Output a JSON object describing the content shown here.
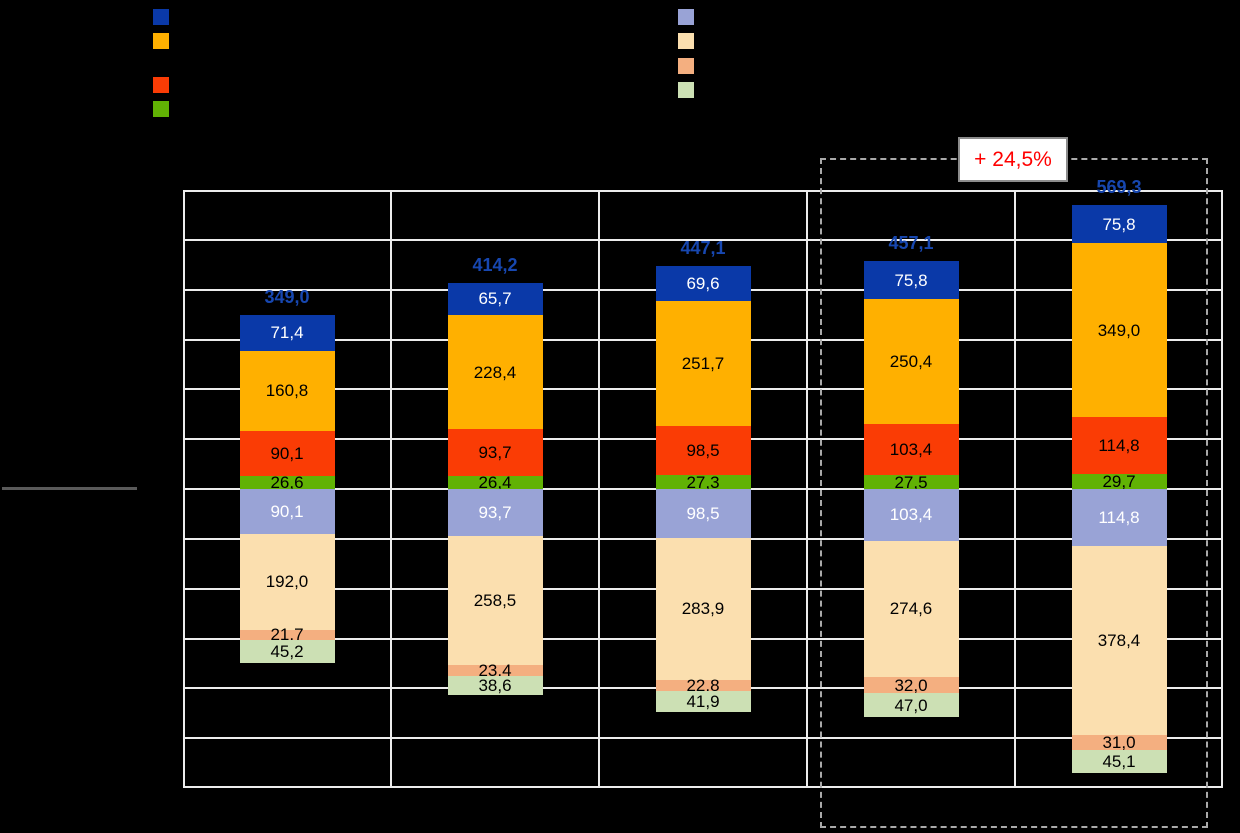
{
  "canvas": {
    "background": "#000000"
  },
  "legend_left": {
    "items": [
      {
        "name": "dark-blue",
        "color": "#0A39A8"
      },
      {
        "name": "orange",
        "color": "#FFB000"
      },
      {
        "name": "red-orange",
        "color": "#FA3C05"
      },
      {
        "name": "green",
        "color": "#61B204"
      }
    ]
  },
  "legend_right": {
    "items": [
      {
        "name": "light-purple",
        "color": "#99A3D6"
      },
      {
        "name": "tan",
        "color": "#FBDFAF"
      },
      {
        "name": "salmon",
        "color": "#F4AF80"
      },
      {
        "name": "light-green",
        "color": "#CCE0B4"
      }
    ]
  },
  "annotation": {
    "text": "+ 24,5%",
    "color": "#FF0000"
  },
  "chart_data": {
    "type": "bar",
    "subtype": "mirrored stacked columns (upper stack above baseline, lower stack below)",
    "columns": 5,
    "categories": [
      "",
      "",
      "",
      "",
      ""
    ],
    "ylim": [
      -600,
      600
    ],
    "grid_step": 100,
    "grid": true,
    "legend_position": "top",
    "totals": {
      "labels": [
        "349,0",
        "414,2",
        "447,1",
        "457,1",
        "569,3"
      ],
      "values": [
        349.0,
        414.2,
        447.1,
        457.1,
        569.3
      ],
      "color": "#1747B0"
    },
    "upper_series": [
      {
        "name": "dark-blue",
        "color": "#0A39A8",
        "text_color": "#FFFFFF",
        "values": [
          71.4,
          65.7,
          69.6,
          75.8,
          75.8
        ],
        "labels": [
          "71,4",
          "65,7",
          "69,6",
          "75,8",
          "75,8"
        ]
      },
      {
        "name": "orange",
        "color": "#FFB000",
        "text_color": "#000000",
        "values": [
          160.8,
          228.4,
          251.7,
          250.4,
          349.0
        ],
        "labels": [
          "160,8",
          "228,4",
          "251,7",
          "250,4",
          "349,0"
        ]
      },
      {
        "name": "red-orange",
        "color": "#FA3C05",
        "text_color": "#000000",
        "values": [
          90.1,
          93.7,
          98.5,
          103.4,
          114.8
        ],
        "labels": [
          "90,1",
          "93,7",
          "98,5",
          "103,4",
          "114,8"
        ]
      },
      {
        "name": "green",
        "color": "#61B204",
        "text_color": "#000000",
        "values": [
          26.6,
          26.4,
          27.3,
          27.5,
          29.7
        ],
        "labels": [
          "26,6",
          "26,4",
          "27,3",
          "27,5",
          "29,7"
        ]
      }
    ],
    "lower_series": [
      {
        "name": "light-purple",
        "color": "#99A3D6",
        "text_color": "#FFFFFF",
        "values": [
          90.1,
          93.7,
          98.5,
          103.4,
          114.8
        ],
        "labels": [
          "90,1",
          "93,7",
          "98,5",
          "103,4",
          "114,8"
        ]
      },
      {
        "name": "tan",
        "color": "#FBDFAF",
        "text_color": "#000000",
        "values": [
          192.0,
          258.5,
          283.9,
          274.6,
          378.4
        ],
        "labels": [
          "192,0",
          "258,5",
          "283,9",
          "274,6",
          "378,4"
        ]
      },
      {
        "name": "salmon",
        "color": "#F4AF80",
        "text_color": "#000000",
        "values": [
          21.7,
          23.4,
          22.8,
          32.0,
          31.0
        ],
        "labels": [
          "21,7",
          "23,4",
          "22,8",
          "32,0",
          "31,0"
        ]
      },
      {
        "name": "light-green",
        "color": "#CCE0B4",
        "text_color": "#000000",
        "values": [
          45.2,
          38.6,
          41.9,
          47.0,
          45.1
        ],
        "labels": [
          "45,2",
          "38,6",
          "41,9",
          "47,0",
          "45,1"
        ]
      }
    ],
    "highlight": {
      "columns": [
        4,
        5
      ],
      "label": "+ 24,5%"
    }
  }
}
